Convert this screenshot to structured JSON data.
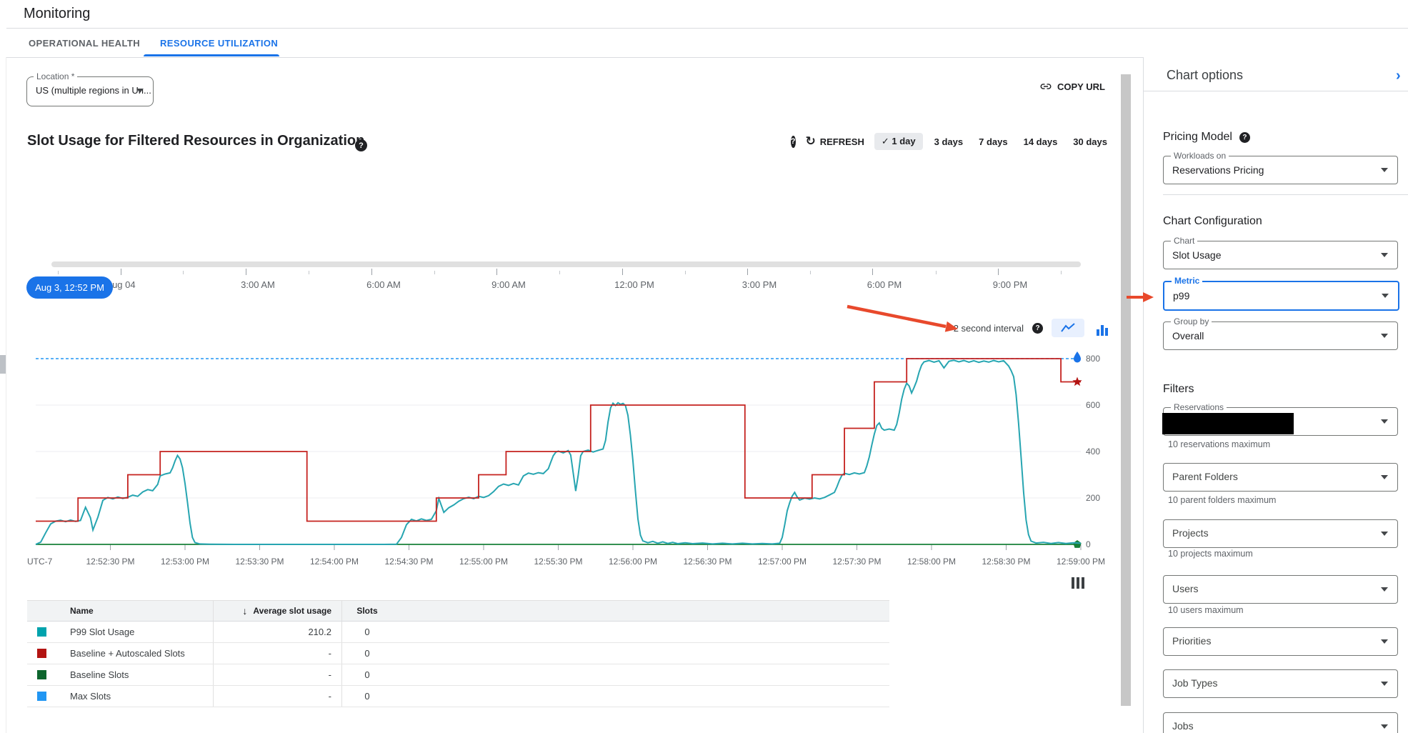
{
  "app": {
    "title": "Monitoring"
  },
  "tabs": [
    {
      "label": "OPERATIONAL HEALTH",
      "active": false
    },
    {
      "label": "RESOURCE UTILIZATION",
      "active": true
    }
  ],
  "toolbar": {
    "location_label": "Location *",
    "location_value": "US (multiple regions in Un...",
    "copy_url_label": "COPY URL"
  },
  "chart_header": {
    "title": "Slot Usage for Filtered Resources in Organization",
    "refresh_label": "REFRESH",
    "refresh_glyph": "↻",
    "check_glyph": "✓",
    "ranges": [
      {
        "label": "1 day",
        "selected": true
      },
      {
        "label": "3 days",
        "selected": false
      },
      {
        "label": "7 days",
        "selected": false
      },
      {
        "label": "14 days",
        "selected": false
      },
      {
        "label": "30 days",
        "selected": false
      }
    ]
  },
  "timeline": {
    "pill": "Aug 3, 12:52 PM",
    "labels": [
      "Aug 04",
      "3:00 AM",
      "6:00 AM",
      "9:00 AM",
      "12:00 PM",
      "3:00 PM",
      "6:00 PM",
      "9:00 PM"
    ]
  },
  "interval_label": "2 second interval",
  "axis": {
    "utc_label": "UTC-7"
  },
  "chart_data": {
    "type": "line",
    "title": "Slot Usage for Filtered Resources in Organization",
    "x_unit": "seconds after 12:52:00 PM",
    "x_range": [
      0,
      420
    ],
    "y_range": [
      0,
      800
    ],
    "y_ticks": [
      800,
      600,
      400,
      200,
      0
    ],
    "grid_y_values": [
      200,
      400,
      600
    ],
    "x_tick_interval_s": 30,
    "x_tick_labels": [
      "12:52:30 PM",
      "12:53:00 PM",
      "12:53:30 PM",
      "12:54:00 PM",
      "12:54:30 PM",
      "12:55:00 PM",
      "12:55:30 PM",
      "12:56:00 PM",
      "12:56:30 PM",
      "12:57:00 PM",
      "12:57:30 PM",
      "12:58:00 PM",
      "12:58:30 PM",
      "12:59:00 PM"
    ],
    "series": [
      {
        "name": "Max Slots",
        "color": "#42a5f5",
        "style": "dashed",
        "end_marker": "pin",
        "points": [
          [
            0,
            800
          ],
          [
            420,
            800
          ]
        ]
      },
      {
        "name": "Baseline Slots",
        "color": "#188038",
        "style": "solid",
        "end_marker": "pentagon",
        "points": [
          [
            0,
            0
          ],
          [
            420,
            0
          ]
        ]
      },
      {
        "name": "P99 Slot Usage",
        "color": "#27a5b1",
        "style": "solid",
        "end_marker": "none",
        "points": [
          [
            0,
            0
          ],
          [
            2,
            10
          ],
          [
            4,
            50
          ],
          [
            6,
            88
          ],
          [
            8,
            100
          ],
          [
            10,
            104
          ],
          [
            12,
            98
          ],
          [
            14,
            105
          ],
          [
            16,
            99
          ],
          [
            18,
            103
          ],
          [
            20,
            160
          ],
          [
            22,
            115
          ],
          [
            23,
            62
          ],
          [
            25,
            118
          ],
          [
            27,
            190
          ],
          [
            29,
            202
          ],
          [
            31,
            196
          ],
          [
            33,
            204
          ],
          [
            35,
            198
          ],
          [
            37,
            203
          ],
          [
            39,
            212
          ],
          [
            41,
            207
          ],
          [
            43,
            226
          ],
          [
            45,
            236
          ],
          [
            47,
            231
          ],
          [
            49,
            258
          ],
          [
            50,
            295
          ],
          [
            52,
            303
          ],
          [
            54,
            308
          ],
          [
            55,
            330
          ],
          [
            56,
            360
          ],
          [
            57,
            383
          ],
          [
            58,
            368
          ],
          [
            59,
            330
          ],
          [
            60,
            262
          ],
          [
            61,
            180
          ],
          [
            62,
            92
          ],
          [
            63,
            30
          ],
          [
            64,
            8
          ],
          [
            66,
            2
          ],
          [
            70,
            1
          ],
          [
            80,
            0
          ],
          [
            95,
            0
          ],
          [
            110,
            0
          ],
          [
            125,
            0
          ],
          [
            140,
            0
          ],
          [
            145,
            1
          ],
          [
            147,
            30
          ],
          [
            149,
            85
          ],
          [
            151,
            108
          ],
          [
            153,
            101
          ],
          [
            155,
            110
          ],
          [
            157,
            103
          ],
          [
            159,
            108
          ],
          [
            161,
            145
          ],
          [
            162,
            198
          ],
          [
            164,
            138
          ],
          [
            166,
            158
          ],
          [
            168,
            170
          ],
          [
            170,
            186
          ],
          [
            172,
            197
          ],
          [
            174,
            203
          ],
          [
            176,
            197
          ],
          [
            178,
            207
          ],
          [
            180,
            202
          ],
          [
            182,
            210
          ],
          [
            184,
            227
          ],
          [
            186,
            250
          ],
          [
            188,
            260
          ],
          [
            190,
            254
          ],
          [
            192,
            262
          ],
          [
            194,
            256
          ],
          [
            196,
            295
          ],
          [
            198,
            307
          ],
          [
            200,
            302
          ],
          [
            202,
            309
          ],
          [
            204,
            305
          ],
          [
            206,
            326
          ],
          [
            207,
            355
          ],
          [
            208,
            382
          ],
          [
            209,
            397
          ],
          [
            210,
            402
          ],
          [
            212,
            394
          ],
          [
            214,
            404
          ],
          [
            215,
            385
          ],
          [
            216,
            308
          ],
          [
            217,
            230
          ],
          [
            218,
            298
          ],
          [
            219,
            382
          ],
          [
            220,
            400
          ],
          [
            222,
            406
          ],
          [
            224,
            398
          ],
          [
            226,
            405
          ],
          [
            228,
            411
          ],
          [
            229,
            448
          ],
          [
            230,
            528
          ],
          [
            231,
            588
          ],
          [
            232,
            608
          ],
          [
            233,
            598
          ],
          [
            234,
            610
          ],
          [
            235,
            603
          ],
          [
            236,
            607
          ],
          [
            237,
            598
          ],
          [
            238,
            556
          ],
          [
            239,
            470
          ],
          [
            240,
            360
          ],
          [
            241,
            230
          ],
          [
            242,
            110
          ],
          [
            243,
            40
          ],
          [
            244,
            15
          ],
          [
            246,
            7
          ],
          [
            248,
            13
          ],
          [
            250,
            5
          ],
          [
            252,
            11
          ],
          [
            254,
            4
          ],
          [
            256,
            9
          ],
          [
            258,
            3
          ],
          [
            261,
            7
          ],
          [
            264,
            3
          ],
          [
            268,
            6
          ],
          [
            272,
            2
          ],
          [
            276,
            5
          ],
          [
            280,
            2
          ],
          [
            284,
            5
          ],
          [
            288,
            2
          ],
          [
            292,
            4
          ],
          [
            296,
            2
          ],
          [
            299,
            5
          ],
          [
            300,
            30
          ],
          [
            301,
            85
          ],
          [
            302,
            145
          ],
          [
            303,
            180
          ],
          [
            304,
            208
          ],
          [
            305,
            224
          ],
          [
            306,
            204
          ],
          [
            307,
            191
          ],
          [
            309,
            199
          ],
          [
            311,
            195
          ],
          [
            313,
            200
          ],
          [
            315,
            196
          ],
          [
            317,
            202
          ],
          [
            319,
            213
          ],
          [
            321,
            224
          ],
          [
            322,
            248
          ],
          [
            323,
            276
          ],
          [
            324,
            298
          ],
          [
            325,
            306
          ],
          [
            327,
            301
          ],
          [
            329,
            308
          ],
          [
            331,
            303
          ],
          [
            333,
            309
          ],
          [
            334,
            338
          ],
          [
            335,
            377
          ],
          [
            336,
            428
          ],
          [
            337,
            475
          ],
          [
            338,
            512
          ],
          [
            339,
            523
          ],
          [
            340,
            500
          ],
          [
            341,
            492
          ],
          [
            343,
            497
          ],
          [
            345,
            492
          ],
          [
            346,
            516
          ],
          [
            347,
            565
          ],
          [
            348,
            625
          ],
          [
            349,
            668
          ],
          [
            350,
            694
          ],
          [
            351,
            682
          ],
          [
            352,
            652
          ],
          [
            353,
            676
          ],
          [
            354,
            703
          ],
          [
            355,
            742
          ],
          [
            356,
            772
          ],
          [
            357,
            786
          ],
          [
            359,
            792
          ],
          [
            361,
            785
          ],
          [
            363,
            791
          ],
          [
            365,
            760
          ],
          [
            367,
            789
          ],
          [
            369,
            793
          ],
          [
            371,
            786
          ],
          [
            373,
            792
          ],
          [
            375,
            785
          ],
          [
            377,
            791
          ],
          [
            379,
            784
          ],
          [
            381,
            790
          ],
          [
            383,
            785
          ],
          [
            385,
            792
          ],
          [
            387,
            786
          ],
          [
            389,
            791
          ],
          [
            391,
            768
          ],
          [
            392,
            748
          ],
          [
            393,
            722
          ],
          [
            394,
            645
          ],
          [
            395,
            520
          ],
          [
            396,
            375
          ],
          [
            397,
            225
          ],
          [
            398,
            105
          ],
          [
            399,
            42
          ],
          [
            400,
            14
          ],
          [
            402,
            6
          ],
          [
            405,
            9
          ],
          [
            408,
            4
          ],
          [
            411,
            8
          ],
          [
            414,
            4
          ],
          [
            417,
            7
          ],
          [
            420,
            5
          ]
        ]
      },
      {
        "name": "Baseline + Autoscaled Slots",
        "color": "#c5221f",
        "style": "solid",
        "end_marker": "star",
        "points": [
          [
            0,
            100
          ],
          [
            17,
            100
          ],
          [
            17,
            200
          ],
          [
            37,
            200
          ],
          [
            37,
            300
          ],
          [
            50,
            300
          ],
          [
            50,
            400
          ],
          [
            109,
            400
          ],
          [
            109,
            100
          ],
          [
            161,
            100
          ],
          [
            161,
            200
          ],
          [
            178,
            200
          ],
          [
            178,
            300
          ],
          [
            189,
            300
          ],
          [
            189,
            400
          ],
          [
            223,
            400
          ],
          [
            223,
            600
          ],
          [
            285,
            600
          ],
          [
            285,
            200
          ],
          [
            312,
            200
          ],
          [
            312,
            300
          ],
          [
            325,
            300
          ],
          [
            325,
            500
          ],
          [
            337,
            500
          ],
          [
            337,
            700
          ],
          [
            350,
            700
          ],
          [
            350,
            800
          ],
          [
            412,
            800
          ],
          [
            412,
            700
          ],
          [
            420,
            700
          ]
        ]
      }
    ]
  },
  "table": {
    "columns": {
      "name": "Name",
      "avg": "Average slot usage",
      "slots": "Slots"
    },
    "sort_glyph": "↓",
    "rows": [
      {
        "color": "#00a3ad",
        "name": "P99 Slot Usage",
        "avg": "210.2",
        "slots": "0"
      },
      {
        "color": "#b31412",
        "name": "Baseline + Autoscaled Slots",
        "avg": "-",
        "slots": "0"
      },
      {
        "color": "#0d652d",
        "name": "Baseline Slots",
        "avg": "-",
        "slots": "0"
      },
      {
        "color": "#2196f3",
        "name": "Max Slots",
        "avg": "-",
        "slots": "0"
      }
    ]
  },
  "sidebar": {
    "title": "Chart options",
    "collapse_glyph": "›",
    "pricing": {
      "heading": "Pricing Model",
      "dropdown": {
        "label": "Workloads on",
        "value": "Reservations Pricing"
      }
    },
    "config": {
      "heading": "Chart Configuration",
      "dropdowns": [
        {
          "label": "Chart",
          "value": "Slot Usage",
          "focused": false
        },
        {
          "label": "Metric",
          "value": "p99",
          "focused": true
        },
        {
          "label": "Group by",
          "value": "Overall",
          "focused": false
        }
      ]
    },
    "filters": {
      "heading": "Filters",
      "items": [
        {
          "label": "Reservations",
          "labeled": true,
          "redacted": true,
          "helper": "10 reservations maximum"
        },
        {
          "label": "Parent Folders",
          "labeled": false,
          "redacted": false,
          "helper": "10 parent folders maximum"
        },
        {
          "label": "Projects",
          "labeled": false,
          "redacted": false,
          "helper": "10 projects maximum"
        },
        {
          "label": "Users",
          "labeled": false,
          "redacted": false,
          "helper": "10 users maximum"
        },
        {
          "label": "Priorities",
          "labeled": false,
          "redacted": false,
          "helper": ""
        },
        {
          "label": "Job Types",
          "labeled": false,
          "redacted": false,
          "helper": ""
        },
        {
          "label": "Jobs",
          "labeled": false,
          "redacted": false,
          "helper": ""
        }
      ]
    }
  },
  "annotations": {
    "arrow_color": "#e8492c"
  }
}
